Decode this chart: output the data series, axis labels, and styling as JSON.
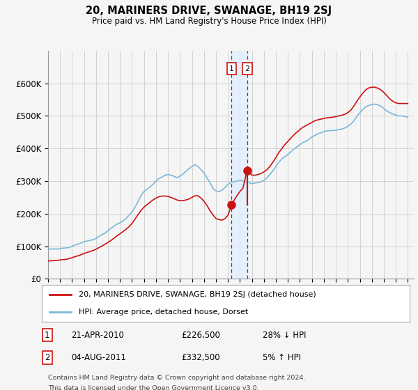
{
  "title": "20, MARINERS DRIVE, SWANAGE, BH19 2SJ",
  "subtitle": "Price paid vs. HM Land Registry's House Price Index (HPI)",
  "hpi_label": "HPI: Average price, detached house, Dorset",
  "property_label": "20, MARINERS DRIVE, SWANAGE, BH19 2SJ (detached house)",
  "footnote1": "Contains HM Land Registry data © Crown copyright and database right 2024.",
  "footnote2": "This data is licensed under the Open Government Licence v3.0.",
  "transaction1_date": "21-APR-2010",
  "transaction1_price": "£226,500",
  "transaction1_hpi": "28% ↓ HPI",
  "transaction2_date": "04-AUG-2011",
  "transaction2_price": "£332,500",
  "transaction2_hpi": "5% ↑ HPI",
  "hpi_color": "#7ab8d9",
  "property_color": "#cc1111",
  "transaction_line_color": "#cc1111",
  "shade_color": "#ddeeff",
  "ylim": [
    0,
    700000
  ],
  "yticks": [
    0,
    100000,
    200000,
    300000,
    400000,
    500000,
    600000
  ],
  "ytick_labels": [
    "£0",
    "£100K",
    "£200K",
    "£300K",
    "£400K",
    "£500K",
    "£600K"
  ],
  "hpi_data": [
    [
      1995.0,
      91000
    ],
    [
      1995.25,
      91500
    ],
    [
      1995.5,
      92000
    ],
    [
      1995.75,
      91000
    ],
    [
      1996.0,
      93000
    ],
    [
      1996.25,
      94000
    ],
    [
      1996.5,
      95000
    ],
    [
      1996.75,
      96000
    ],
    [
      1997.0,
      100000
    ],
    [
      1997.25,
      104000
    ],
    [
      1997.5,
      107000
    ],
    [
      1997.75,
      110000
    ],
    [
      1998.0,
      114000
    ],
    [
      1998.25,
      116000
    ],
    [
      1998.5,
      118000
    ],
    [
      1998.75,
      120000
    ],
    [
      1999.0,
      124000
    ],
    [
      1999.25,
      130000
    ],
    [
      1999.5,
      136000
    ],
    [
      1999.75,
      140000
    ],
    [
      2000.0,
      148000
    ],
    [
      2000.25,
      155000
    ],
    [
      2000.5,
      162000
    ],
    [
      2000.75,
      168000
    ],
    [
      2001.0,
      172000
    ],
    [
      2001.25,
      178000
    ],
    [
      2001.5,
      185000
    ],
    [
      2001.75,
      195000
    ],
    [
      2002.0,
      205000
    ],
    [
      2002.25,
      220000
    ],
    [
      2002.5,
      238000
    ],
    [
      2002.75,
      255000
    ],
    [
      2003.0,
      268000
    ],
    [
      2003.25,
      275000
    ],
    [
      2003.5,
      282000
    ],
    [
      2003.75,
      290000
    ],
    [
      2004.0,
      300000
    ],
    [
      2004.25,
      308000
    ],
    [
      2004.5,
      312000
    ],
    [
      2004.75,
      318000
    ],
    [
      2005.0,
      320000
    ],
    [
      2005.25,
      318000
    ],
    [
      2005.5,
      315000
    ],
    [
      2005.75,
      310000
    ],
    [
      2006.0,
      315000
    ],
    [
      2006.25,
      322000
    ],
    [
      2006.5,
      330000
    ],
    [
      2006.75,
      338000
    ],
    [
      2007.0,
      345000
    ],
    [
      2007.25,
      350000
    ],
    [
      2007.5,
      345000
    ],
    [
      2007.75,
      335000
    ],
    [
      2008.0,
      325000
    ],
    [
      2008.25,
      310000
    ],
    [
      2008.5,
      295000
    ],
    [
      2008.75,
      278000
    ],
    [
      2009.0,
      270000
    ],
    [
      2009.25,
      268000
    ],
    [
      2009.5,
      272000
    ],
    [
      2009.75,
      280000
    ],
    [
      2010.0,
      290000
    ],
    [
      2010.25,
      295000
    ],
    [
      2010.5,
      298000
    ],
    [
      2010.75,
      300000
    ],
    [
      2011.0,
      302000
    ],
    [
      2011.25,
      300000
    ],
    [
      2011.5,
      298000
    ],
    [
      2011.75,
      295000
    ],
    [
      2012.0,
      292000
    ],
    [
      2012.25,
      294000
    ],
    [
      2012.5,
      295000
    ],
    [
      2012.75,
      298000
    ],
    [
      2013.0,
      302000
    ],
    [
      2013.25,
      310000
    ],
    [
      2013.5,
      320000
    ],
    [
      2013.75,
      332000
    ],
    [
      2014.0,
      345000
    ],
    [
      2014.25,
      358000
    ],
    [
      2014.5,
      368000
    ],
    [
      2014.75,
      375000
    ],
    [
      2015.0,
      382000
    ],
    [
      2015.25,
      390000
    ],
    [
      2015.5,
      398000
    ],
    [
      2015.75,
      405000
    ],
    [
      2016.0,
      412000
    ],
    [
      2016.25,
      418000
    ],
    [
      2016.5,
      422000
    ],
    [
      2016.75,
      428000
    ],
    [
      2017.0,
      435000
    ],
    [
      2017.25,
      440000
    ],
    [
      2017.5,
      445000
    ],
    [
      2017.75,
      448000
    ],
    [
      2018.0,
      452000
    ],
    [
      2018.25,
      454000
    ],
    [
      2018.5,
      455000
    ],
    [
      2018.75,
      455000
    ],
    [
      2019.0,
      456000
    ],
    [
      2019.25,
      458000
    ],
    [
      2019.5,
      460000
    ],
    [
      2019.75,
      463000
    ],
    [
      2020.0,
      468000
    ],
    [
      2020.25,
      475000
    ],
    [
      2020.5,
      485000
    ],
    [
      2020.75,
      498000
    ],
    [
      2021.0,
      510000
    ],
    [
      2021.25,
      520000
    ],
    [
      2021.5,
      528000
    ],
    [
      2021.75,
      532000
    ],
    [
      2022.0,
      535000
    ],
    [
      2022.25,
      536000
    ],
    [
      2022.5,
      534000
    ],
    [
      2022.75,
      530000
    ],
    [
      2023.0,
      522000
    ],
    [
      2023.25,
      515000
    ],
    [
      2023.5,
      510000
    ],
    [
      2023.75,
      506000
    ],
    [
      2024.0,
      502000
    ],
    [
      2024.25,
      500000
    ],
    [
      2024.5,
      500000
    ],
    [
      2024.75,
      498000
    ],
    [
      2025.0,
      496000
    ]
  ],
  "property_data": [
    [
      1995.0,
      55000
    ],
    [
      1995.25,
      55500
    ],
    [
      1995.5,
      56000
    ],
    [
      1995.75,
      56500
    ],
    [
      1996.0,
      58000
    ],
    [
      1996.25,
      59000
    ],
    [
      1996.5,
      60000
    ],
    [
      1996.75,
      62000
    ],
    [
      1997.0,
      65000
    ],
    [
      1997.25,
      68000
    ],
    [
      1997.5,
      71000
    ],
    [
      1997.75,
      74000
    ],
    [
      1998.0,
      78000
    ],
    [
      1998.25,
      81000
    ],
    [
      1998.5,
      84000
    ],
    [
      1998.75,
      87000
    ],
    [
      1999.0,
      91000
    ],
    [
      1999.25,
      96000
    ],
    [
      1999.5,
      101000
    ],
    [
      1999.75,
      106000
    ],
    [
      2000.0,
      112000
    ],
    [
      2000.25,
      118000
    ],
    [
      2000.5,
      125000
    ],
    [
      2000.75,
      132000
    ],
    [
      2001.0,
      138000
    ],
    [
      2001.25,
      145000
    ],
    [
      2001.5,
      152000
    ],
    [
      2001.75,
      160000
    ],
    [
      2002.0,
      170000
    ],
    [
      2002.25,
      183000
    ],
    [
      2002.5,
      197000
    ],
    [
      2002.75,
      210000
    ],
    [
      2003.0,
      220000
    ],
    [
      2003.25,
      228000
    ],
    [
      2003.5,
      235000
    ],
    [
      2003.75,
      242000
    ],
    [
      2004.0,
      248000
    ],
    [
      2004.25,
      252000
    ],
    [
      2004.5,
      254000
    ],
    [
      2004.75,
      254000
    ],
    [
      2005.0,
      253000
    ],
    [
      2005.25,
      250000
    ],
    [
      2005.5,
      246000
    ],
    [
      2005.75,
      242000
    ],
    [
      2006.0,
      240000
    ],
    [
      2006.25,
      240000
    ],
    [
      2006.5,
      242000
    ],
    [
      2006.75,
      245000
    ],
    [
      2007.0,
      250000
    ],
    [
      2007.25,
      255000
    ],
    [
      2007.5,
      255000
    ],
    [
      2007.75,
      248000
    ],
    [
      2008.0,
      238000
    ],
    [
      2008.25,
      225000
    ],
    [
      2008.5,
      210000
    ],
    [
      2008.75,
      196000
    ],
    [
      2009.0,
      185000
    ],
    [
      2009.25,
      182000
    ],
    [
      2009.5,
      180000
    ],
    [
      2009.75,
      185000
    ],
    [
      2010.0,
      195000
    ],
    [
      2010.3,
      226500
    ],
    [
      2010.5,
      240000
    ],
    [
      2010.75,
      255000
    ],
    [
      2011.0,
      268000
    ],
    [
      2011.25,
      278000
    ],
    [
      2011.6,
      332500
    ],
    [
      2011.75,
      330000
    ],
    [
      2012.0,
      318000
    ],
    [
      2012.25,
      318000
    ],
    [
      2012.5,
      320000
    ],
    [
      2012.75,
      323000
    ],
    [
      2013.0,
      328000
    ],
    [
      2013.25,
      335000
    ],
    [
      2013.5,
      345000
    ],
    [
      2013.75,
      358000
    ],
    [
      2014.0,
      372000
    ],
    [
      2014.25,
      388000
    ],
    [
      2014.5,
      400000
    ],
    [
      2014.75,
      412000
    ],
    [
      2015.0,
      422000
    ],
    [
      2015.25,
      432000
    ],
    [
      2015.5,
      442000
    ],
    [
      2015.75,
      450000
    ],
    [
      2016.0,
      458000
    ],
    [
      2016.25,
      465000
    ],
    [
      2016.5,
      470000
    ],
    [
      2016.75,
      475000
    ],
    [
      2017.0,
      480000
    ],
    [
      2017.25,
      485000
    ],
    [
      2017.5,
      488000
    ],
    [
      2017.75,
      490000
    ],
    [
      2018.0,
      492000
    ],
    [
      2018.25,
      494000
    ],
    [
      2018.5,
      495000
    ],
    [
      2018.75,
      496000
    ],
    [
      2019.0,
      498000
    ],
    [
      2019.25,
      500000
    ],
    [
      2019.5,
      502000
    ],
    [
      2019.75,
      505000
    ],
    [
      2020.0,
      510000
    ],
    [
      2020.25,
      518000
    ],
    [
      2020.5,
      530000
    ],
    [
      2020.75,
      545000
    ],
    [
      2021.0,
      558000
    ],
    [
      2021.25,
      570000
    ],
    [
      2021.5,
      580000
    ],
    [
      2021.75,
      586000
    ],
    [
      2022.0,
      588000
    ],
    [
      2022.25,
      588000
    ],
    [
      2022.5,
      585000
    ],
    [
      2022.75,
      580000
    ],
    [
      2023.0,
      572000
    ],
    [
      2023.25,
      562000
    ],
    [
      2023.5,
      552000
    ],
    [
      2023.75,
      545000
    ],
    [
      2024.0,
      540000
    ],
    [
      2024.25,
      538000
    ],
    [
      2024.5,
      538000
    ],
    [
      2024.75,
      538000
    ],
    [
      2025.0,
      538000
    ]
  ],
  "transaction1_x": 2010.3,
  "transaction1_y": 226500,
  "transaction2_x": 2011.6,
  "transaction2_y": 332500,
  "xmin": 1995,
  "xmax": 2025.5,
  "bg_color": "#f5f5f5",
  "plot_bg_color": "#f5f5f5",
  "grid_color": "#cccccc"
}
